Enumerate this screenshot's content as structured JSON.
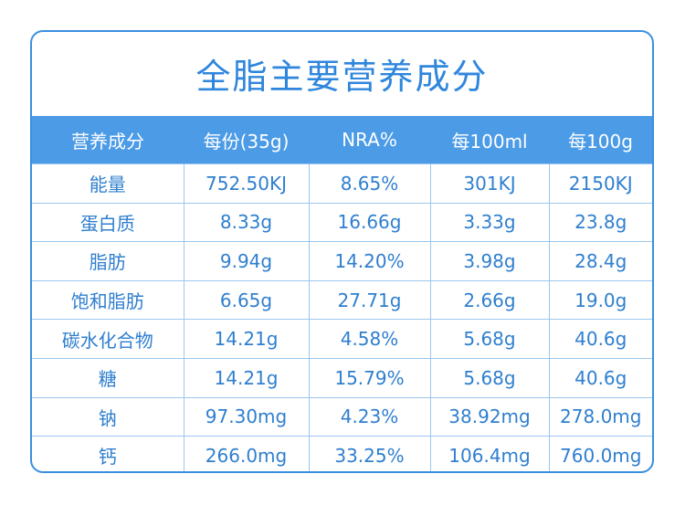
{
  "title": "全脂主要营养成分",
  "table": {
    "header": [
      "营养成分",
      "每份(35g)",
      "NRA%",
      "每100ml",
      "每100g"
    ],
    "rows": [
      [
        "能量",
        "752.50KJ",
        "8.65%",
        "301KJ",
        "2150KJ"
      ],
      [
        "蛋白质",
        "8.33g",
        "16.66g",
        "3.33g",
        "23.8g"
      ],
      [
        "脂肪",
        "9.94g",
        "14.20%",
        "3.98g",
        "28.4g"
      ],
      [
        "饱和脂肪",
        "6.65g",
        "27.71g",
        "2.66g",
        "19.0g"
      ],
      [
        "碳水化合物",
        "14.21g",
        "4.58%",
        "5.68g",
        "40.6g"
      ],
      [
        "糖",
        "14.21g",
        "15.79%",
        "5.68g",
        "40.6g"
      ],
      [
        "钠",
        "97.30mg",
        "4.23%",
        "38.92mg",
        "278.0mg"
      ],
      [
        "钙",
        "266.0mg",
        "33.25%",
        "106.4mg",
        "760.0mg"
      ]
    ]
  }
}
